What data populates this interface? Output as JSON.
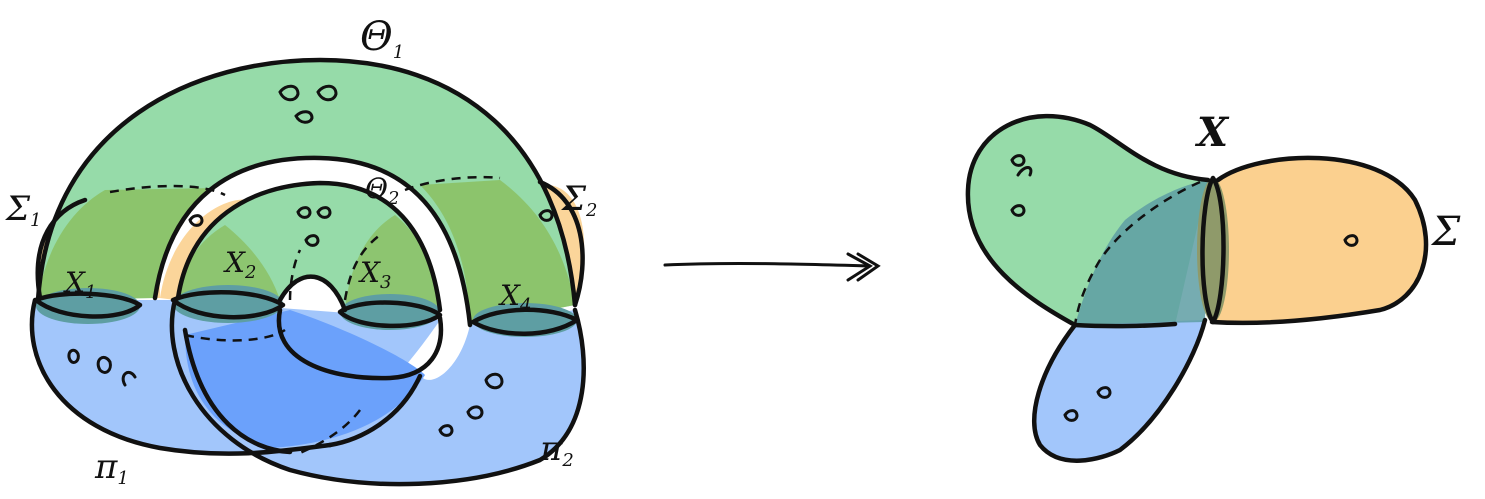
{
  "colors": {
    "green": "#96dba9",
    "green_dark": "#8bbf62",
    "orange": "#fbd08f",
    "blue": "#a2c6fb",
    "blue_dark": "#6ba1fb",
    "teal": "#5e9ea3",
    "ink": "#111111"
  },
  "labels": {
    "theta1": "Θ",
    "theta1_sub": "1",
    "theta2": "Θ",
    "theta2_sub": "2",
    "sigma1": "Σ",
    "sigma1_sub": "1",
    "sigma2": "Σ",
    "sigma2_sub": "2",
    "x1": "X",
    "x1_sub": "1",
    "x2": "X",
    "x2_sub": "2",
    "x3": "X",
    "x3_sub": "3",
    "x4": "X",
    "x4_sub": "4",
    "pi1": "π",
    "pi1_sub": "1",
    "pi2": "π",
    "pi2_sub": "2",
    "x_right": "X",
    "sigma_right": "Σ"
  },
  "icons": {
    "arrow": "double-head-arrow-icon"
  }
}
